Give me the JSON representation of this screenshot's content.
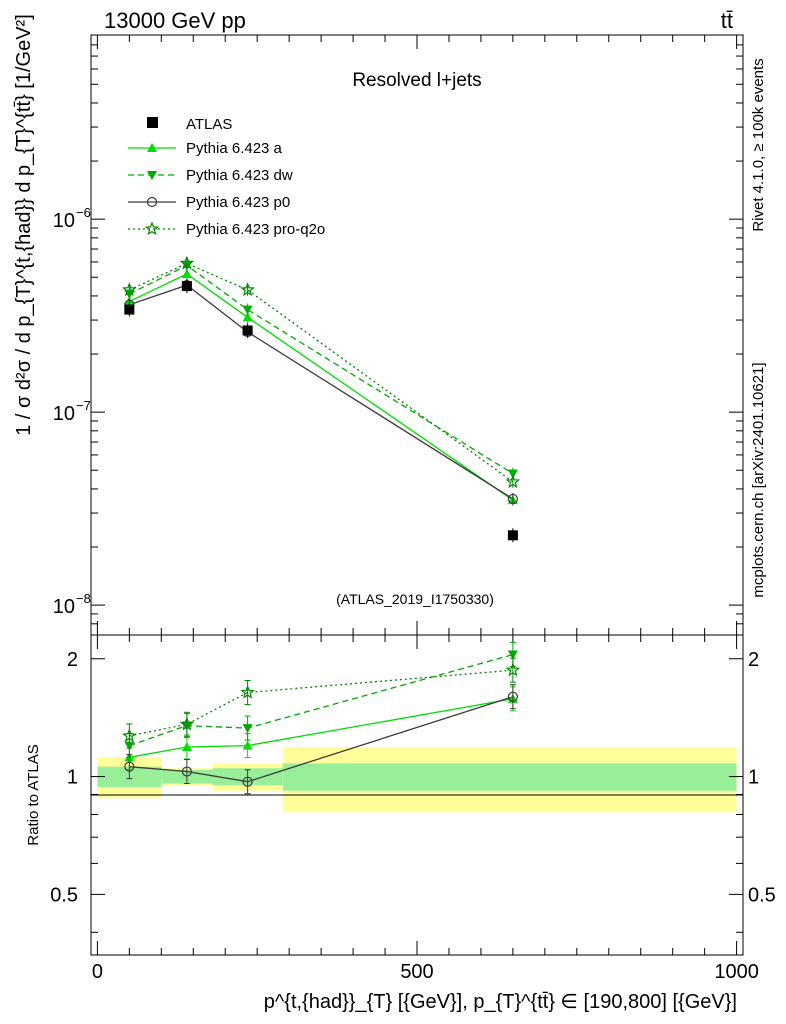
{
  "header": {
    "energy_label": "13000 GeV pp",
    "process_label": "tt̄"
  },
  "side_labels": {
    "rivet": "Rivet 4.1.0, ≥ 100k events",
    "mcplots": "mcplots.cern.ch [arXiv:2401.10621]"
  },
  "chart_data": {
    "type": "line",
    "title": "Resolved l+jets",
    "analysis_id": "(ATLAS_2019_I1750330)",
    "ylabel_main": "1 / σ d²σ / d p_{T}^{t,{had}} d p_{T}^{tt̄} [1/GeV²]",
    "ylabel_ratio": "Ratio to ATLAS",
    "xlabel": "p^{t,{had}}_{T} [{GeV}], p_{T}^{tt̄} ∈ [190,800] [{GeV}]",
    "xlim": [
      -10,
      1010
    ],
    "ylim_main": [
      7e-09,
      9e-06
    ],
    "ylim_ratio": [
      0.35,
      2.3
    ],
    "x_ticks": [
      {
        "value": 0,
        "label": "0"
      },
      {
        "value": 500,
        "label": "500"
      },
      {
        "value": 1000,
        "label": "1000"
      }
    ],
    "y_ticks_main": [
      {
        "value": 1e-08,
        "label": "10",
        "exp": "−8"
      },
      {
        "value": 1e-07,
        "label": "10",
        "exp": "−7"
      },
      {
        "value": 1e-06,
        "label": "10",
        "exp": "−6"
      }
    ],
    "y_ticks_ratio": [
      {
        "value": 0.5,
        "label": "0.5"
      },
      {
        "value": 1,
        "label": "1"
      },
      {
        "value": 2,
        "label": "2"
      }
    ],
    "x": [
      50,
      140,
      235,
      650
    ],
    "data": {
      "name": "ATLAS",
      "values": [
        3.4e-07,
        4.5e-07,
        2.65e-07,
        2.3e-08
      ],
      "bins": [
        [
          0,
          100
        ],
        [
          100,
          180
        ],
        [
          180,
          290
        ],
        [
          290,
          1000
        ]
      ],
      "stat_band": [
        0.06,
        0.04,
        0.05,
        0.08
      ],
      "total_band": [
        0.12,
        0.05,
        0.08,
        0.19
      ]
    },
    "series": [
      {
        "name": "Pythia 6.423 a",
        "color": "#00dd00",
        "dash": "",
        "marker": "triangle-up",
        "values": [
          3.75e-07,
          5.2e-07,
          3.1e-07,
          3.5e-08
        ],
        "ratio": [
          1.12,
          1.19,
          1.2,
          1.58
        ]
      },
      {
        "name": "Pythia 6.423 dw",
        "color": "#00aa00",
        "dash": "6,4",
        "marker": "triangle-down",
        "values": [
          4.1e-07,
          5.75e-07,
          3.4e-07,
          4.8e-08
        ],
        "ratio": [
          1.2,
          1.35,
          1.33,
          2.05
        ]
      },
      {
        "name": "Pythia 6.423 p0",
        "color": "#3b3b3b",
        "dash": "",
        "marker": "circle-open",
        "values": [
          3.6e-07,
          4.55e-07,
          2.6e-07,
          3.55e-08
        ],
        "ratio": [
          1.06,
          1.03,
          0.97,
          1.6
        ]
      },
      {
        "name": "Pythia 6.423 pro-q2o",
        "color": "#008800",
        "dash": "2,3",
        "marker": "star-open",
        "values": [
          4.3e-07,
          5.9e-07,
          4.3e-07,
          4.35e-08
        ],
        "ratio": [
          1.27,
          1.36,
          1.64,
          1.87
        ]
      }
    ],
    "legend_position": "top-left"
  },
  "colors": {
    "band_total": "#ffff99",
    "band_stat": "#99ee99",
    "axis": "#000000",
    "side_text": "#808080",
    "analysis_text": "#999999"
  }
}
